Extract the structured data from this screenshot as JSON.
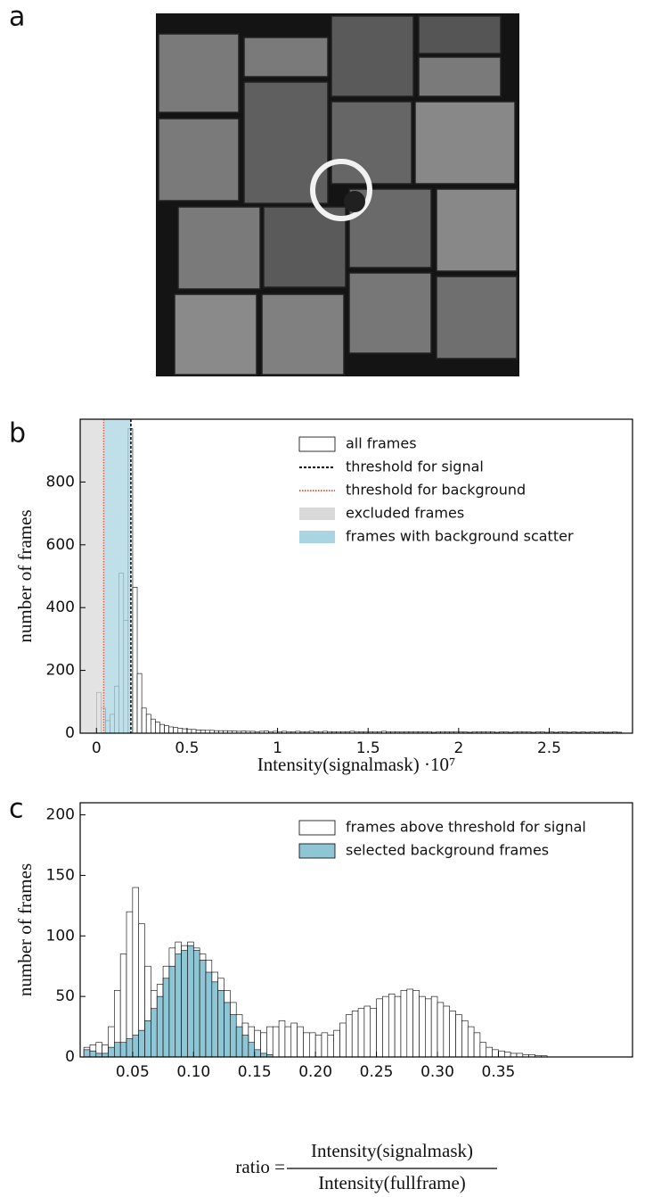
{
  "panel_labels": [
    "a",
    "b",
    "c"
  ],
  "chart_data": [
    {
      "type": "histogram",
      "xlabel": "Intensity(signalmask) ·10⁷",
      "ylabel": "number of frames",
      "xlim": [
        -0.09,
        2.96
      ],
      "ylim": [
        0,
        1000
      ],
      "xticks": [
        0,
        0.5,
        1,
        1.5,
        2,
        2.5
      ],
      "yticks": [
        0,
        200,
        400,
        600,
        800
      ],
      "bins": [
        0,
        0.025,
        0.05,
        0.075,
        0.1,
        0.125,
        0.15,
        0.175,
        0.2,
        0.225,
        0.25,
        0.275,
        0.3,
        0.325,
        0.35,
        0.375,
        0.4,
        0.425,
        0.45,
        0.475,
        0.5,
        0.525,
        0.55,
        0.575,
        0.6,
        0.625,
        0.65,
        0.675,
        0.7,
        0.725,
        0.75,
        0.775,
        0.8,
        0.825,
        0.85,
        0.875,
        0.9,
        0.925,
        0.95,
        0.975,
        1,
        1.025,
        1.05,
        1.075,
        1.1,
        1.125,
        1.15,
        1.175,
        1.2,
        1.225,
        1.25,
        1.275,
        1.3,
        1.325,
        1.35,
        1.375,
        1.4,
        1.425,
        1.45,
        1.475,
        1.5,
        1.525,
        1.55,
        1.575,
        1.6,
        1.625,
        1.65,
        1.675,
        1.7,
        1.725,
        1.75,
        1.775,
        1.8,
        1.825,
        1.85,
        1.875,
        1.9,
        1.925,
        1.95,
        1.975,
        2,
        2.025,
        2.05,
        2.075,
        2.1,
        2.125,
        2.15,
        2.175,
        2.2,
        2.225,
        2.25,
        2.275,
        2.3,
        2.325,
        2.35,
        2.375,
        2.4,
        2.425,
        2.45,
        2.475,
        2.5,
        2.525,
        2.55,
        2.575,
        2.6,
        2.625,
        2.65,
        2.675,
        2.7,
        2.725,
        2.75,
        2.775,
        2.8,
        2.825,
        2.85,
        2.875,
        2.9
      ],
      "series": [
        {
          "name": "all frames",
          "color": "#ffffff",
          "values": [
            130,
            80,
            40,
            60,
            150,
            510,
            360,
            970,
            465,
            190,
            80,
            60,
            45,
            35,
            28,
            24,
            20,
            18,
            16,
            14,
            12,
            12,
            10,
            10,
            9,
            9,
            8,
            8,
            8,
            7,
            7,
            6,
            7,
            6,
            6,
            5,
            6,
            7,
            5,
            6,
            5,
            6,
            5,
            4,
            6,
            5,
            5,
            6,
            4,
            5,
            6,
            5,
            4,
            5,
            5,
            4,
            6,
            5,
            4,
            5,
            4,
            5,
            4,
            6,
            4,
            5,
            4,
            4,
            5,
            4,
            5,
            4,
            4,
            5,
            3,
            4,
            5,
            4,
            4,
            5,
            4,
            4,
            3,
            5,
            4,
            4,
            5,
            4,
            3,
            4,
            4,
            3,
            4,
            5,
            4,
            4,
            3,
            4,
            4,
            3,
            4,
            3,
            4,
            4,
            3,
            4,
            3,
            4,
            3,
            4,
            3,
            4,
            3,
            3,
            4,
            3
          ]
        }
      ],
      "lines": [
        {
          "name": "threshold for signal",
          "value": 0.19,
          "color": "#000000"
        },
        {
          "name": "threshold for background",
          "value": 0.04,
          "color": "#e8604c"
        }
      ],
      "regions": [
        {
          "name": "excluded frames",
          "color": "#d9d9d9"
        },
        {
          "name": "frames with background scatter",
          "color": "#a9d4e2"
        }
      ]
    },
    {
      "type": "histogram",
      "xlabel": {
        "prefix": "ratio =",
        "numerator": "Intensity(signalmask)",
        "denominator": "Intensity(fullframe)"
      },
      "ylabel": "number of frames",
      "xlim": [
        0.007,
        0.46
      ],
      "ylim": [
        0,
        210
      ],
      "xticks": [
        0.05,
        {
          "value": 0.1,
          "label": "0.10"
        },
        0.15,
        {
          "value": 0.2,
          "label": "0.20"
        },
        0.25,
        {
          "value": 0.3,
          "label": "0.30"
        },
        0.35
      ],
      "yticks": [
        0,
        50,
        100,
        150,
        200
      ],
      "bins": [
        0.01,
        0.015,
        0.02,
        0.025,
        0.03,
        0.035,
        0.04,
        0.045,
        0.05,
        0.055,
        0.06,
        0.065,
        0.07,
        0.075,
        0.08,
        0.085,
        0.09,
        0.095,
        0.1,
        0.105,
        0.11,
        0.115,
        0.12,
        0.125,
        0.13,
        0.135,
        0.14,
        0.145,
        0.15,
        0.155,
        0.16,
        0.165,
        0.17,
        0.175,
        0.18,
        0.185,
        0.19,
        0.195,
        0.2,
        0.205,
        0.21,
        0.215,
        0.22,
        0.225,
        0.23,
        0.235,
        0.24,
        0.245,
        0.25,
        0.255,
        0.26,
        0.265,
        0.27,
        0.275,
        0.28,
        0.285,
        0.29,
        0.295,
        0.3,
        0.305,
        0.31,
        0.315,
        0.32,
        0.325,
        0.33,
        0.335,
        0.34,
        0.345,
        0.35,
        0.355,
        0.36,
        0.365,
        0.37,
        0.375,
        0.38,
        0.385,
        0.39
      ],
      "series": [
        {
          "name": "frames above threshold for signal",
          "color": "#ffffff",
          "values": [
            8,
            10,
            12,
            10,
            25,
            55,
            85,
            120,
            140,
            110,
            75,
            55,
            60,
            75,
            90,
            95,
            92,
            95,
            90,
            85,
            80,
            70,
            65,
            55,
            45,
            35,
            28,
            25,
            22,
            20,
            25,
            25,
            30,
            25,
            28,
            25,
            20,
            20,
            18,
            20,
            18,
            22,
            28,
            35,
            38,
            40,
            42,
            40,
            48,
            50,
            52,
            50,
            55,
            56,
            55,
            50,
            48,
            50,
            45,
            42,
            38,
            35,
            30,
            25,
            20,
            12,
            8,
            6,
            5,
            4,
            3,
            3,
            2,
            2,
            1,
            1
          ]
        },
        {
          "name": "selected background frames",
          "color": "#8fc6d6",
          "values": [
            6,
            5,
            3,
            3,
            8,
            12,
            12,
            15,
            18,
            22,
            30,
            40,
            50,
            65,
            75,
            85,
            88,
            92,
            88,
            80,
            70,
            62,
            55,
            45,
            35,
            25,
            18,
            12,
            6,
            3,
            2,
            0,
            0,
            0,
            0,
            0,
            0,
            0,
            0,
            0,
            0,
            0,
            0,
            0,
            0,
            0,
            0,
            0,
            0,
            0,
            0,
            0,
            0,
            0,
            0,
            0,
            0,
            0,
            0,
            0,
            0,
            0,
            0,
            0,
            0,
            0,
            0,
            0,
            0,
            0,
            0,
            0,
            0,
            0,
            0,
            0
          ]
        }
      ]
    }
  ]
}
